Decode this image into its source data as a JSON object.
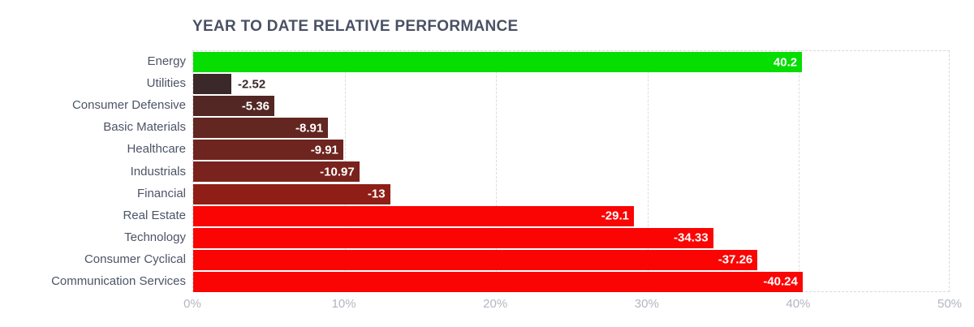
{
  "title": "YEAR TO DATE RELATIVE PERFORMANCE",
  "colors": {
    "title_text": "#4a5164",
    "category_label_text": "#4c5466",
    "axis_tick_text": "#b2b6c1",
    "grid_line": "#dcdcdc",
    "plot_border": "#d9d9d9",
    "value_text_inside": "#ffffff",
    "positive_green": "#06dd00",
    "negative_full_red": "#fb0404"
  },
  "chart_data": {
    "type": "bar",
    "orientation": "horizontal",
    "title": "YEAR TO DATE RELATIVE PERFORMANCE",
    "categories": [
      "Energy",
      "Utilities",
      "Consumer Defensive",
      "Basic Materials",
      "Healthcare",
      "Industrials",
      "Financial",
      "Real Estate",
      "Technology",
      "Consumer Cyclical",
      "Communication Services"
    ],
    "values": [
      40.2,
      -2.52,
      -5.36,
      -8.91,
      -9.91,
      -10.97,
      -13,
      -29.1,
      -34.33,
      -37.26,
      -40.24
    ],
    "value_labels": [
      "40.2",
      "-2.52",
      "-5.36",
      "-8.91",
      "-9.91",
      "-10.97",
      "-13",
      "-29.1",
      "-34.33",
      "-37.26",
      "-40.24"
    ],
    "bar_colors": [
      "#06dd00",
      "#3a2928",
      "#522724",
      "#632621",
      "#6e241f",
      "#7a221d",
      "#8f1e16",
      "#fb0404",
      "#fb0404",
      "#fb0404",
      "#fb0404"
    ],
    "xlabel": "",
    "ylabel": "",
    "x_ticks": [
      "0%",
      "10%",
      "20%",
      "30%",
      "40%",
      "50%"
    ],
    "x_tick_values": [
      0,
      10,
      20,
      30,
      40,
      50
    ],
    "x_range": [
      0,
      50
    ],
    "grid": "vertical-dashed",
    "legend": "none",
    "bars_plotted_by": "absolute value of percentage"
  }
}
